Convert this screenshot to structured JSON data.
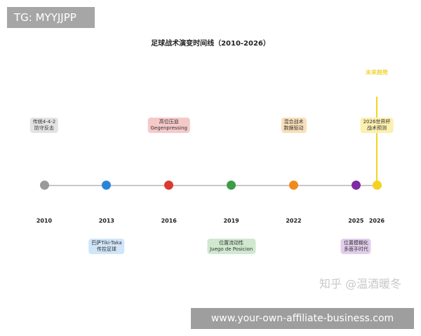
{
  "overlay_tag": "TG: MYYJJPP",
  "title": "足球战术演变时间线（2010-2026）",
  "future_label": "未来趋势",
  "future_color": "#f2d523",
  "year_range": [
    2010,
    2026
  ],
  "events": [
    {
      "year": "2010",
      "lines": [
        "传统4-4-2",
        "防守反击"
      ],
      "dot": "#999999",
      "bg": "#e3e3e3",
      "pos": "above"
    },
    {
      "year": "2013",
      "lines": [
        "巴萨Tiki-Taka",
        "传控足球"
      ],
      "dot": "#2a85d8",
      "bg": "#cfe5f8",
      "pos": "below"
    },
    {
      "year": "2016",
      "lines": [
        "高位压迫",
        "Gegenpressing"
      ],
      "dot": "#d93a32",
      "bg": "#f6c9c9",
      "pos": "above"
    },
    {
      "year": "2019",
      "lines": [
        "位置流动性",
        "Juego de Posicion"
      ],
      "dot": "#3e9b46",
      "bg": "#cfe8cf",
      "pos": "below"
    },
    {
      "year": "2022",
      "lines": [
        "混合战术",
        "数据驱动"
      ],
      "dot": "#f08a18",
      "bg": "#f9dfb9",
      "pos": "above"
    },
    {
      "year": "2025",
      "lines": [
        "位置模糊化",
        "多面手时代"
      ],
      "dot": "#7f2aa6",
      "bg": "#e2cdec",
      "pos": "below"
    },
    {
      "year": "2026",
      "lines": [
        "2026世界杯",
        "战术预测"
      ],
      "dot": "#f5d21f",
      "bg": "#fbf0b0",
      "pos": "above"
    }
  ],
  "watermark": "知乎 @温酒暖冬",
  "footer": "www.your-own-affiliate-business.com"
}
